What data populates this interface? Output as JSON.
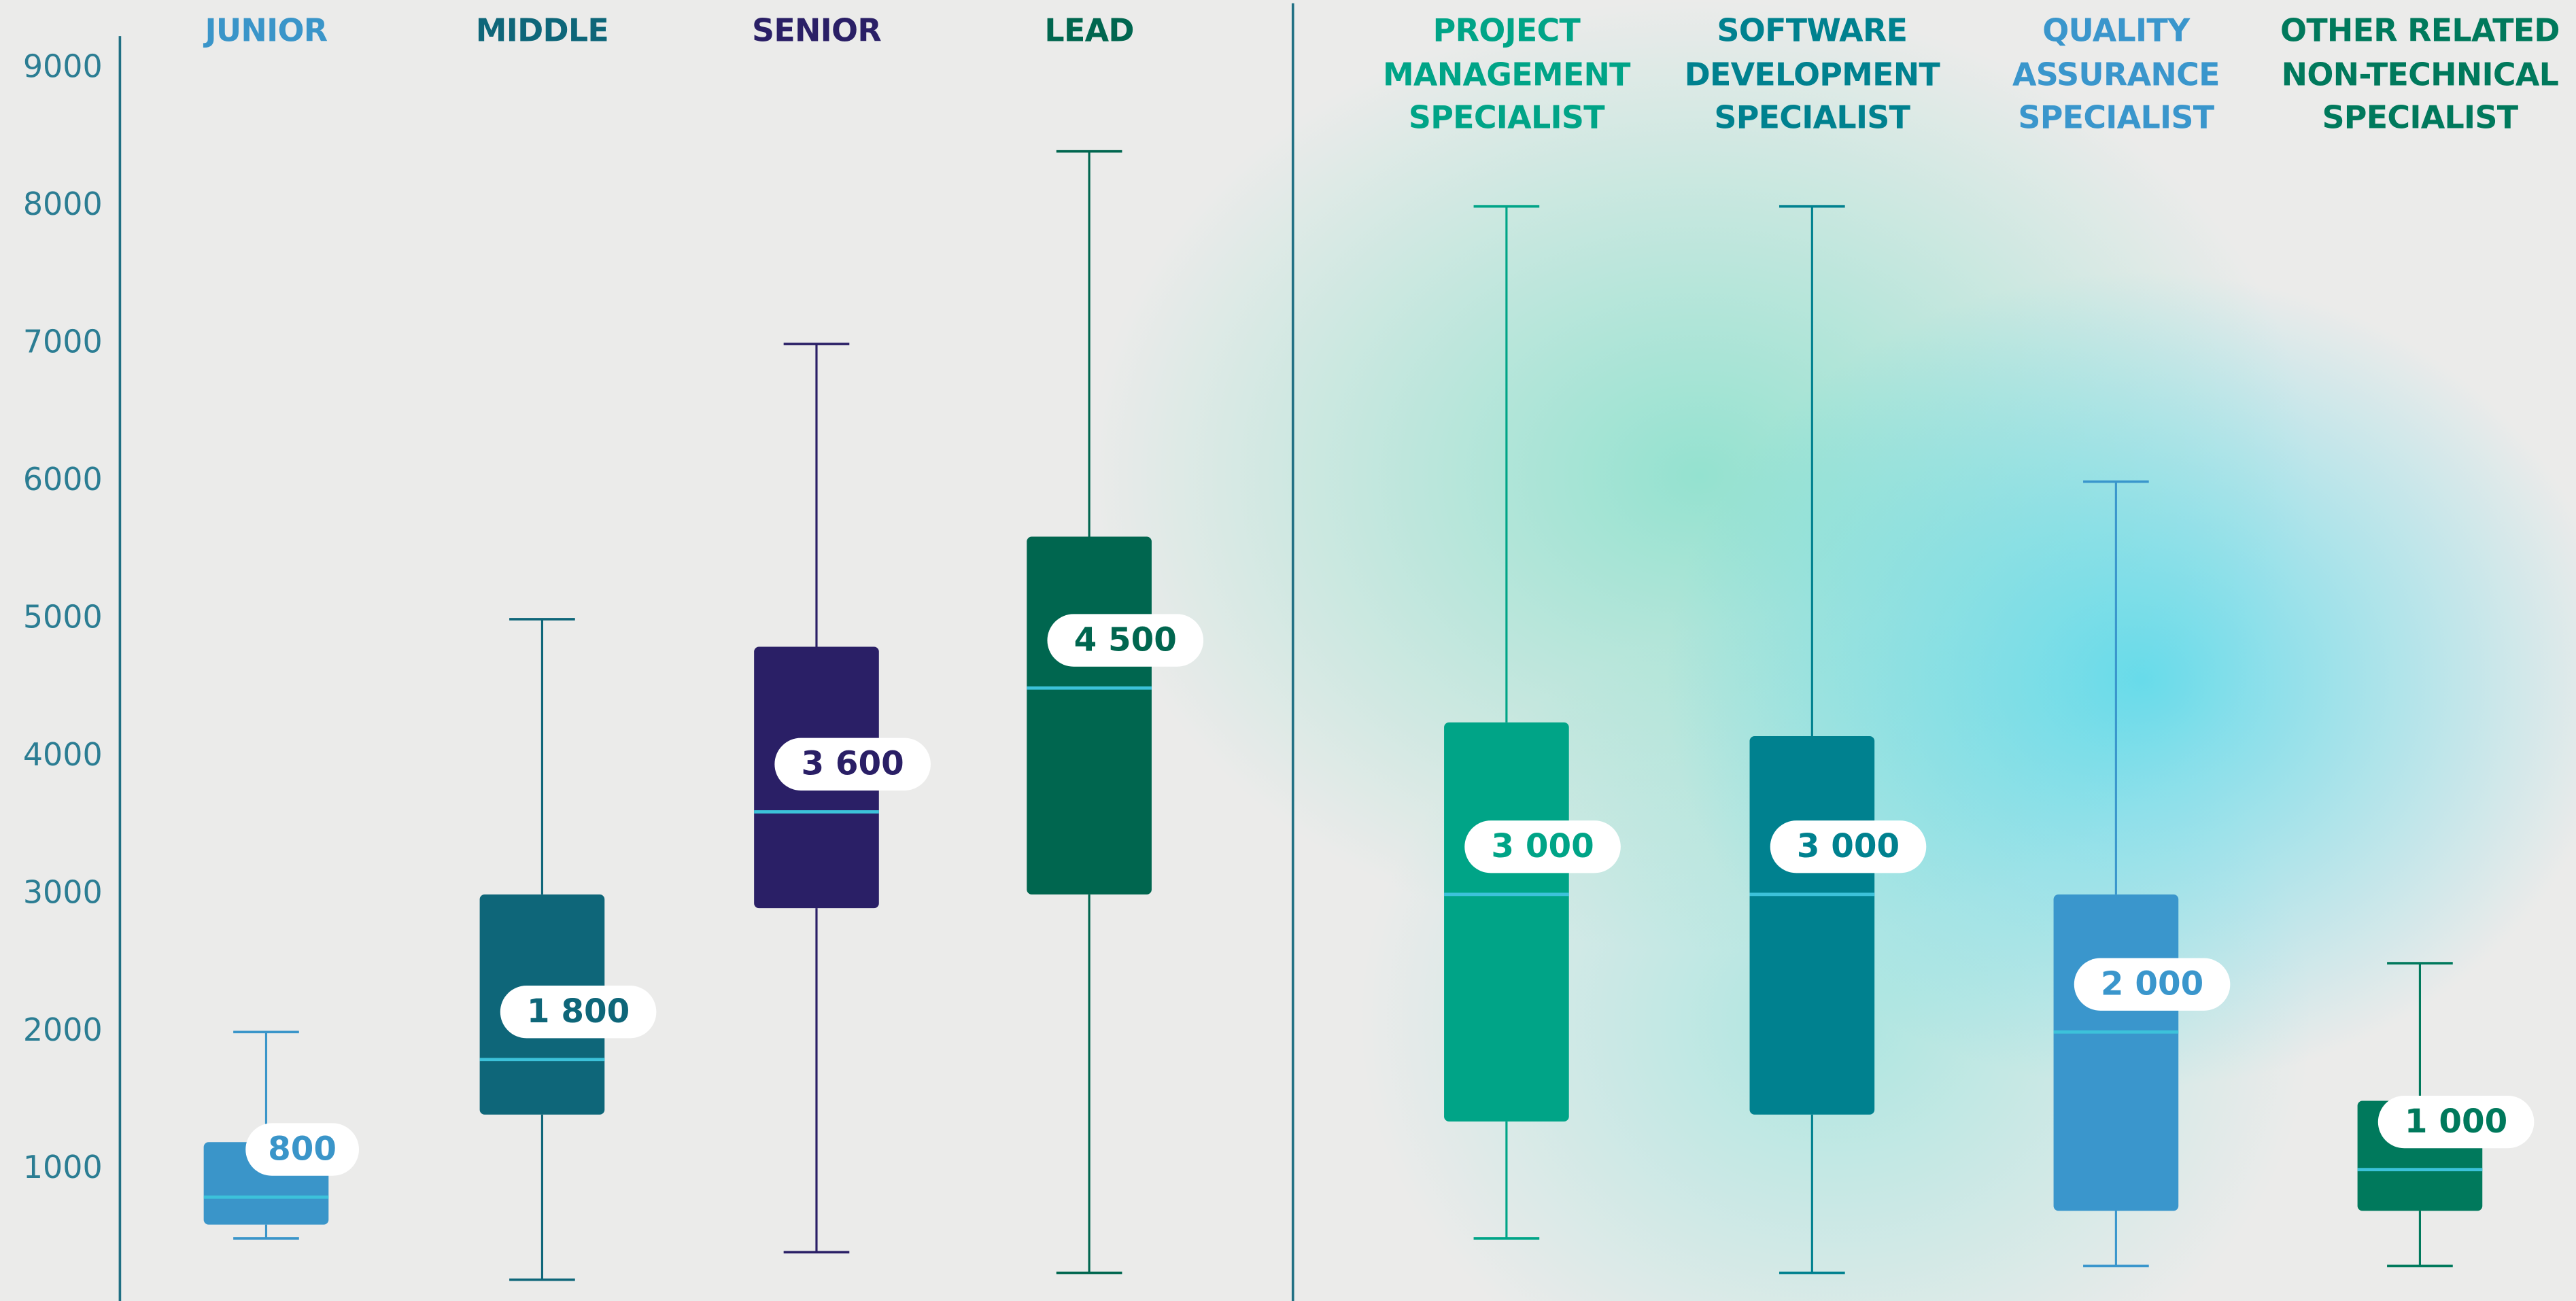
{
  "chart_data": {
    "type": "box",
    "categories": [
      "JUNIOR",
      "MIDDLE",
      "SENIOR",
      "LEAD",
      "PROJECT\nMANAGEMENT\nSPECIALIST",
      "SOFTWARE\nDEVELOPMENT\nSPECIALIST",
      "QUALITY\nASSURANCE\nSPECIALIST",
      "OTHER RELATED\nNON-TECHNICAL\nSPECIALIST"
    ],
    "min": [
      500,
      200,
      400,
      250,
      500,
      250,
      300,
      300
    ],
    "q1": [
      600,
      1400,
      2900,
      3000,
      1350,
      1400,
      700,
      700
    ],
    "median": [
      800,
      1800,
      3600,
      4500,
      3000,
      3000,
      2000,
      1000
    ],
    "q3": [
      1200,
      3000,
      4800,
      5600,
      4250,
      4150,
      3000,
      1500
    ],
    "max": [
      2000,
      5000,
      7000,
      8400,
      8000,
      8000,
      6000,
      2500
    ],
    "value_labels": [
      "800",
      "1 800",
      "3 600",
      "4 500",
      "3 000",
      "3 000",
      "2 000",
      "1 000"
    ],
    "colors": [
      "#3a95c9",
      "#0e6679",
      "#2a1f66",
      "#00664f",
      "#00a487",
      "#00818f",
      "#3a96cc",
      "#00795c"
    ],
    "median_color": "#3cc2da",
    "ylim": [
      45,
      9500
    ],
    "yticks": [
      1000,
      2000,
      3000,
      4000,
      5000,
      6000,
      7000,
      8000,
      9000
    ]
  }
}
